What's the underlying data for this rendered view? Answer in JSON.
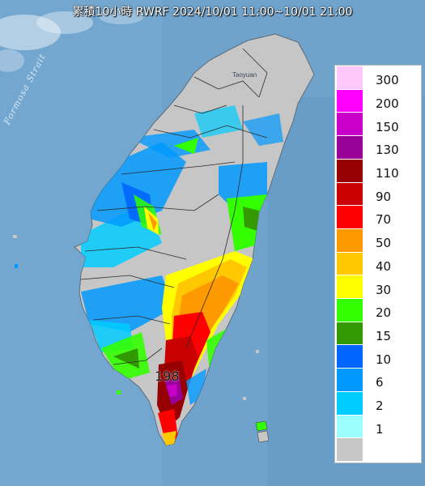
{
  "title": "累積10小時 RWRF 2024/10/01 11:00~10/01 21:00",
  "strait_label": "Formosa Strait",
  "place_label": "Taoyuan",
  "max_value_label": "198",
  "legend": {
    "items": [
      {
        "label": "300",
        "color": "#ffc7fb"
      },
      {
        "label": "200",
        "color": "#ff00ff"
      },
      {
        "label": "150",
        "color": "#c800c8"
      },
      {
        "label": "130",
        "color": "#990099"
      },
      {
        "label": "110",
        "color": "#960000"
      },
      {
        "label": "90",
        "color": "#c80000"
      },
      {
        "label": "70",
        "color": "#ff0000"
      },
      {
        "label": "50",
        "color": "#ff9900"
      },
      {
        "label": "40",
        "color": "#ffc800"
      },
      {
        "label": "30",
        "color": "#ffff00"
      },
      {
        "label": "20",
        "color": "#33ff00"
      },
      {
        "label": "15",
        "color": "#339900"
      },
      {
        "label": "10",
        "color": "#0066ff"
      },
      {
        "label": "6",
        "color": "#0099ff"
      },
      {
        "label": "2",
        "color": "#00ccff"
      },
      {
        "label": "1",
        "color": "#9bffff"
      },
      {
        "label": "",
        "color": "#c6c6c6"
      }
    ]
  },
  "colors": {
    "sea": "#6fa3cc",
    "no_rain": "#c6c6c6",
    "county_border": "#2b2b2b"
  }
}
